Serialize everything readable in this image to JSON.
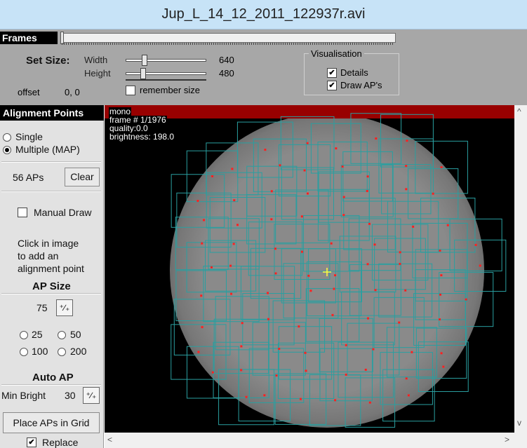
{
  "window": {
    "title": "Jup_L_14_12_2011_122937r.avi"
  },
  "top_panel": {
    "frames_label": "Frames",
    "frames_position": 0.0,
    "set_size": {
      "label": "Set Size:",
      "width_label": "Width",
      "width_value": "640",
      "height_label": "Height",
      "height_value": "480"
    },
    "offset": {
      "label": "offset",
      "value": "0, 0"
    },
    "remember_size": {
      "label": "remember size",
      "checked": false
    },
    "visualisation": {
      "legend": "Visualisation",
      "details": {
        "label": "Details",
        "checked": true
      },
      "draw_aps": {
        "label": "Draw AP's",
        "checked": true
      }
    }
  },
  "left_panel": {
    "header": "Alignment Points",
    "mode_single": "Single",
    "mode_multiple": "Multiple (MAP)",
    "selected_mode": "Multiple (MAP)",
    "ap_count": "56 APs",
    "clear_button": "Clear",
    "manual_draw": {
      "label": "Manual Draw",
      "checked": false
    },
    "instructions": [
      "Click in image",
      "to add an",
      "alignment point"
    ],
    "ap_size_header": "AP Size",
    "ap_size_value": "75",
    "size_options": [
      "25",
      "50",
      "100",
      "200"
    ],
    "auto_ap_header": "Auto AP",
    "min_bright_label": "Min Bright",
    "min_bright_value": "30",
    "place_grid_button": "Place APs in Grid",
    "replace": {
      "label": "Replace",
      "checked": true
    }
  },
  "viewer": {
    "info_lines": [
      "mono",
      "frame # 1/1976",
      "quality:0.0",
      "brightness: 198.0"
    ],
    "colors": {
      "ap_box": "#2a9fa0",
      "ap_dot": "#ff2020",
      "cursor": "#ffff40",
      "header_bar": "#980000"
    }
  }
}
